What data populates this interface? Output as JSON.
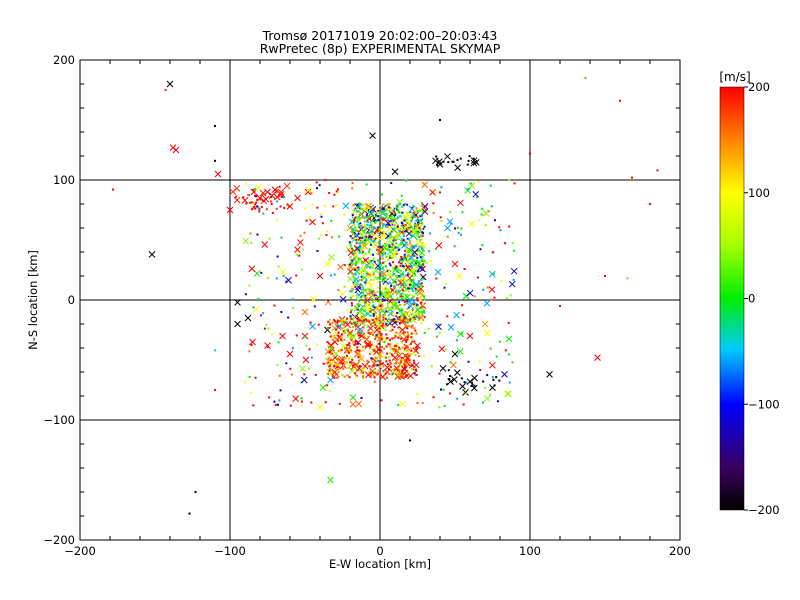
{
  "chart_data": {
    "type": "scatter",
    "title": "Tromsø 20171019 20:02:00–20:03:43",
    "subtitle": "RwPretec (8p) EXPERIMENTAL SKYMAP",
    "xlabel": "E-W location [km]",
    "ylabel": "N-S location [km]",
    "xlim": [
      -200,
      200
    ],
    "ylim": [
      -200,
      200
    ],
    "x_ticks": [
      -200,
      -100,
      0,
      100,
      200
    ],
    "y_ticks": [
      -200,
      -100,
      0,
      100,
      200
    ],
    "x_tick_labels": [
      "−200",
      "−100",
      "0",
      "100",
      "200"
    ],
    "y_tick_labels": [
      "−200",
      "−100",
      "0",
      "100",
      "200"
    ],
    "grid": true,
    "colorbar": {
      "label": "[m/s]",
      "range": [
        -200,
        200
      ],
      "ticks": [
        200,
        100,
        0,
        -100,
        -200
      ],
      "tick_labels": [
        "200",
        "100",
        "0",
        "−100",
        "−200"
      ]
    },
    "cluster_summary": [
      {
        "name": "central column",
        "x_range": [
          -20,
          30
        ],
        "y_range": [
          -20,
          80
        ],
        "velocity_mix": "mixed (green, cyan, yellow, blue)"
      },
      {
        "name": "southern cluster",
        "x_range": [
          -35,
          25
        ],
        "y_range": [
          -65,
          -15
        ],
        "velocity_mix": "mostly red / orange"
      },
      {
        "name": "northwest blob",
        "x_range": [
          -100,
          -60
        ],
        "y_range": [
          75,
          95
        ],
        "velocity_mix": "red"
      },
      {
        "name": "northeast black group",
        "x_range": [
          35,
          65
        ],
        "y_range": [
          110,
          120
        ],
        "velocity_mix": "black"
      },
      {
        "name": "southeast black group",
        "x_range": [
          40,
          80
        ],
        "y_range": [
          -75,
          -55
        ],
        "velocity_mix": "black"
      }
    ],
    "points": [
      {
        "x": -140,
        "y": 180,
        "v": -200,
        "m": "x"
      },
      {
        "x": -143,
        "y": 175,
        "v": 180,
        "m": "."
      },
      {
        "x": -110,
        "y": 145,
        "v": -200,
        "m": "."
      },
      {
        "x": -5,
        "y": 137,
        "v": -200,
        "m": "x"
      },
      {
        "x": 40,
        "y": 150,
        "v": -200,
        "m": "."
      },
      {
        "x": 160,
        "y": 166,
        "v": 200,
        "m": "."
      },
      {
        "x": 137,
        "y": 185,
        "v": 160,
        "m": "."
      },
      {
        "x": -138,
        "y": 127,
        "v": 200,
        "m": "x"
      },
      {
        "x": -136,
        "y": 125,
        "v": 200,
        "m": "x"
      },
      {
        "x": -110,
        "y": 116,
        "v": -200,
        "m": "."
      },
      {
        "x": -108,
        "y": 105,
        "v": 200,
        "m": "x"
      },
      {
        "x": 10,
        "y": 107,
        "v": -200,
        "m": "x"
      },
      {
        "x": 100,
        "y": 122,
        "v": 200,
        "m": "."
      },
      {
        "x": -178,
        "y": 92,
        "v": 200,
        "m": "."
      },
      {
        "x": 185,
        "y": 108,
        "v": 200,
        "m": "."
      },
      {
        "x": 168,
        "y": 102,
        "v": 200,
        "m": "."
      },
      {
        "x": -152,
        "y": 38,
        "v": -200,
        "m": "x"
      },
      {
        "x": -95,
        "y": -2,
        "v": -200,
        "m": "x"
      },
      {
        "x": -95,
        "y": -20,
        "v": -200,
        "m": "x"
      },
      {
        "x": -88,
        "y": -15,
        "v": -200,
        "m": "x"
      },
      {
        "x": -110,
        "y": -42,
        "v": -40,
        "m": "."
      },
      {
        "x": -110,
        "y": -75,
        "v": 200,
        "m": "."
      },
      {
        "x": 113,
        "y": -62,
        "v": -200,
        "m": "x"
      },
      {
        "x": 145,
        "y": -48,
        "v": 200,
        "m": "x"
      },
      {
        "x": 150,
        "y": 20,
        "v": 200,
        "m": "."
      },
      {
        "x": 165,
        "y": 18,
        "v": 20,
        "m": "."
      },
      {
        "x": 120,
        "y": -5,
        "v": 200,
        "m": "."
      },
      {
        "x": 180,
        "y": 80,
        "v": 200,
        "m": "."
      },
      {
        "x": -38,
        "y": -73,
        "v": 10,
        "m": "x"
      },
      {
        "x": -33,
        "y": -150,
        "v": 10,
        "m": "x"
      },
      {
        "x": 20,
        "y": -117,
        "v": -200,
        "m": "."
      },
      {
        "x": -123,
        "y": -160,
        "v": -200,
        "m": "."
      },
      {
        "x": -127,
        "y": -178,
        "v": -200,
        "m": "."
      },
      {
        "x": 85,
        "y": -78,
        "v": 100,
        "m": "x"
      },
      {
        "x": -78,
        "y": 89,
        "v": 200,
        "m": "x"
      },
      {
        "x": -75,
        "y": 90,
        "v": 200,
        "m": "x"
      },
      {
        "x": -72,
        "y": 87,
        "v": 200,
        "m": "x"
      },
      {
        "x": -80,
        "y": 85,
        "v": 200,
        "m": "x"
      },
      {
        "x": -70,
        "y": 92,
        "v": 200,
        "m": "x"
      },
      {
        "x": -76,
        "y": 84,
        "v": 200,
        "m": "x"
      },
      {
        "x": -84,
        "y": 90,
        "v": 200,
        "m": "x"
      },
      {
        "x": -66,
        "y": 88,
        "v": 200,
        "m": "x"
      },
      {
        "x": -90,
        "y": 83,
        "v": 200,
        "m": "x"
      },
      {
        "x": -62,
        "y": 95,
        "v": 180,
        "m": "x"
      },
      {
        "x": -55,
        "y": 85,
        "v": 200,
        "m": "x"
      },
      {
        "x": -48,
        "y": 90,
        "v": 200,
        "m": "x"
      },
      {
        "x": -60,
        "y": 78,
        "v": 200,
        "m": "x"
      },
      {
        "x": -100,
        "y": 75,
        "v": 200,
        "m": "x"
      },
      {
        "x": 8,
        "y": 72,
        "v": -200,
        "m": "x"
      },
      {
        "x": -6,
        "y": 72,
        "v": -200,
        "m": "x"
      },
      {
        "x": -4,
        "y": 68,
        "v": -200,
        "m": "x"
      },
      {
        "x": -10,
        "y": 74,
        "v": -200,
        "m": "x"
      },
      {
        "x": 37,
        "y": 116,
        "v": -200,
        "m": "x"
      },
      {
        "x": 40,
        "y": 113,
        "v": -200,
        "m": "x"
      },
      {
        "x": 47,
        "y": -68,
        "v": -200,
        "m": "x"
      },
      {
        "x": 55,
        "y": -72,
        "v": -200,
        "m": "x"
      },
      {
        "x": 57,
        "y": -77,
        "v": -200,
        "m": "x"
      },
      {
        "x": 60,
        "y": -68,
        "v": -200,
        "m": "x"
      },
      {
        "x": 63,
        "y": -65,
        "v": -200,
        "m": "x"
      },
      {
        "x": 75,
        "y": -73,
        "v": -200,
        "m": "x"
      },
      {
        "x": 50,
        "y": -45,
        "v": -200,
        "m": "x"
      },
      {
        "x": 42,
        "y": -57,
        "v": -200,
        "m": "x"
      },
      {
        "x": 83,
        "y": -62,
        "v": -120,
        "m": "x"
      },
      {
        "x": -22,
        "y": -42,
        "v": 200,
        "m": "x"
      },
      {
        "x": -15,
        "y": -45,
        "v": 200,
        "m": "x"
      },
      {
        "x": -8,
        "y": -38,
        "v": 200,
        "m": "x"
      },
      {
        "x": 10,
        "y": -48,
        "v": 200,
        "m": "x"
      },
      {
        "x": 18,
        "y": -52,
        "v": 200,
        "m": "x"
      },
      {
        "x": -28,
        "y": -55,
        "v": 200,
        "m": "x"
      },
      {
        "x": 5,
        "y": -60,
        "v": 180,
        "m": "x"
      },
      {
        "x": -5,
        "y": -62,
        "v": 150,
        "m": "x"
      },
      {
        "x": 25,
        "y": -38,
        "v": 200,
        "m": "x"
      },
      {
        "x": -2,
        "y": -25,
        "v": 200,
        "m": "x"
      },
      {
        "x": -30,
        "y": -35,
        "v": 200,
        "m": "x"
      },
      {
        "x": -60,
        "y": -45,
        "v": 200,
        "m": "x"
      },
      {
        "x": -65,
        "y": -30,
        "v": 200,
        "m": "x"
      },
      {
        "x": -85,
        "y": -35,
        "v": 200,
        "m": "x"
      },
      {
        "x": -75,
        "y": -38,
        "v": 200,
        "m": "x"
      },
      {
        "x": -50,
        "y": -30,
        "v": 200,
        "m": "x"
      },
      {
        "x": 15,
        "y": -25,
        "v": 200,
        "m": "x"
      },
      {
        "x": -10,
        "y": -55,
        "v": 200,
        "m": "x"
      },
      {
        "x": -35,
        "y": -25,
        "v": -200,
        "m": "x"
      },
      {
        "x": -30,
        "y": -48,
        "v": 200,
        "m": "x"
      },
      {
        "x": 2,
        "y": 40,
        "v": 30,
        "m": "x"
      },
      {
        "x": 12,
        "y": 55,
        "v": 20,
        "m": "x"
      },
      {
        "x": -5,
        "y": 50,
        "v": 60,
        "m": "x"
      },
      {
        "x": 20,
        "y": 30,
        "v": -40,
        "m": "x"
      },
      {
        "x": 30,
        "y": 78,
        "v": -120,
        "m": "x"
      },
      {
        "x": 25,
        "y": 62,
        "v": -140,
        "m": "x"
      },
      {
        "x": -15,
        "y": 78,
        "v": -160,
        "m": "x"
      },
      {
        "x": -45,
        "y": 65,
        "v": 200,
        "m": "x"
      },
      {
        "x": -20,
        "y": 60,
        "v": 150,
        "m": "x"
      },
      {
        "x": 45,
        "y": 60,
        "v": -60,
        "m": "x"
      },
      {
        "x": -40,
        "y": 20,
        "v": 200,
        "m": "x"
      },
      {
        "x": -55,
        "y": 42,
        "v": 200,
        "m": "x"
      },
      {
        "x": -35,
        "y": 30,
        "v": 100,
        "m": "x"
      },
      {
        "x": 50,
        "y": 30,
        "v": 200,
        "m": "x"
      },
      {
        "x": -25,
        "y": 5,
        "v": 90,
        "m": "x"
      },
      {
        "x": 70,
        "y": -20,
        "v": 140,
        "m": "x"
      },
      {
        "x": 60,
        "y": -30,
        "v": 200,
        "m": "x"
      },
      {
        "x": -50,
        "y": -10,
        "v": 160,
        "m": "x"
      }
    ]
  }
}
